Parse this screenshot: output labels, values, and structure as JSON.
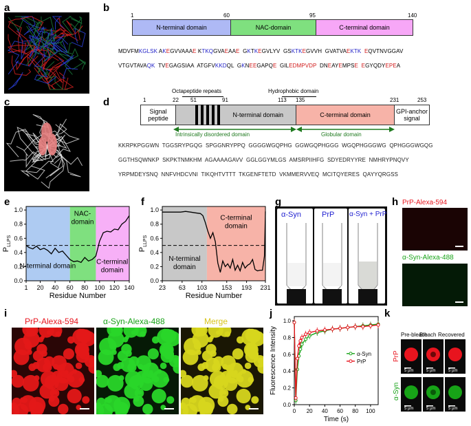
{
  "labels": {
    "a": "a",
    "b": "b",
    "c": "c",
    "d": "d",
    "e": "e",
    "f": "f",
    "g": "g",
    "h": "h",
    "i": "i",
    "j": "j",
    "k": "k"
  },
  "panel_b": {
    "ticks": [
      "1",
      "60",
      "95",
      "140"
    ],
    "domains": [
      "N-terminal domain",
      "NAC-domain",
      "C-terminal domain"
    ],
    "seq_line1": [
      [
        "MDVFM",
        "k"
      ],
      [
        "KGLSK",
        "b"
      ],
      [
        " A",
        "k"
      ],
      [
        "K",
        "b"
      ],
      [
        "E",
        "r"
      ],
      [
        "GVVAA",
        "k"
      ],
      [
        "A",
        "k"
      ],
      [
        "E",
        "r"
      ],
      [
        " K",
        "k"
      ],
      [
        "TKQ",
        "b"
      ],
      [
        "GVA",
        "k"
      ],
      [
        "E",
        "r"
      ],
      [
        "A",
        "k"
      ],
      [
        "A",
        "k"
      ],
      [
        "E",
        "r"
      ],
      [
        "  G",
        "k"
      ],
      [
        "K",
        "b"
      ],
      [
        "T",
        "k"
      ],
      [
        "K",
        "b"
      ],
      [
        "E",
        "r"
      ],
      [
        "GVLYV  GS",
        "k"
      ],
      [
        "KTK",
        "b"
      ],
      [
        "E",
        "r"
      ],
      [
        "GVVH  GVATVA",
        "k"
      ],
      [
        "E",
        "r"
      ],
      [
        "KTK",
        "b"
      ],
      [
        "  ",
        "k"
      ],
      [
        "E",
        "r"
      ],
      [
        "QVTNVGGAV",
        "k"
      ]
    ],
    "seq_line2": [
      [
        "VTGVTAVA",
        "k"
      ],
      [
        "QK",
        "b"
      ],
      [
        "  TV",
        "k"
      ],
      [
        "E",
        "r"
      ],
      [
        "GAGSIAA  ATGFV",
        "k"
      ],
      [
        "KKD",
        "b"
      ],
      [
        "QL  G",
        "k"
      ],
      [
        "K",
        "b"
      ],
      [
        "N",
        "k"
      ],
      [
        "EE",
        "r"
      ],
      [
        "GAP",
        "k"
      ],
      [
        "Q",
        "k"
      ],
      [
        "E",
        "r"
      ],
      [
        "  GIL",
        "k"
      ],
      [
        "EDMPVDP",
        "r"
      ],
      [
        "  DN",
        "k"
      ],
      [
        "E",
        "r"
      ],
      [
        "AY",
        "k"
      ],
      [
        "E",
        "r"
      ],
      [
        "MPS",
        "k"
      ],
      [
        "E",
        "r"
      ],
      [
        "  ",
        "k"
      ],
      [
        "E",
        "r"
      ],
      [
        "GYQDY",
        "k"
      ],
      [
        "EPE",
        "r"
      ],
      [
        "A",
        "k"
      ]
    ]
  },
  "panel_d": {
    "octa_label": "Octapeptide repeats",
    "hydro_label": "Hydrophobic domain",
    "ticks": [
      "1",
      "22",
      "51",
      "91",
      "113",
      "135",
      "231",
      "253"
    ],
    "domains": [
      "Signal peptide",
      "N-terminal domain",
      "C-terminal domain",
      "GPI-anchor signal"
    ],
    "arrow_left": "Intrinsically disordered domain",
    "arrow_right": "Globular domain",
    "seq": [
      "KKRPKPGGWN  TGGSRYPGQG  SPGGNRYPPQ  GGGGWGQPHG  GGWGQPHGGG  WGQPHGGGWG  QPHGGGWGQG",
      "GGTHSQWNKP  SKPKTNMKHM  AGAAAAGAVV  GGLGGYMLGS  AMSRPIIHFG  SDYEDRYYRE  NMHRYPNQVY",
      "YRPMDEYSNQ  NNFVHDCVNI  TIKQHTVTTT  TKGENFTETD  VKMMERVVEQ  MCITQYERES  QAYYQRGSS"
    ]
  },
  "panel_e": {
    "ylabel": "P",
    "ylabel_sub": "LLPS",
    "xlabel": "Residue Number",
    "region_labels": {
      "n": "N-terminal domain",
      "nac": "NAC- domain",
      "c": "C-terminal domain"
    },
    "xticks": [
      "1",
      "20",
      "40",
      "60",
      "80",
      "100",
      "120",
      "140"
    ],
    "yticks": [
      "0.0",
      "0.2",
      "0.4",
      "0.6",
      "0.8",
      "1.0"
    ]
  },
  "panel_f": {
    "ylabel": "P",
    "ylabel_sub": "LLPS",
    "xlabel": "Residue Number",
    "region_labels": {
      "n": "N-terminal domain",
      "c": "C-terminal domain"
    },
    "xticks": [
      "23",
      "63",
      "103",
      "153",
      "193",
      "231"
    ],
    "yticks": [
      "0.0",
      "0.2",
      "0.4",
      "0.6",
      "0.8",
      "1.0"
    ]
  },
  "panel_g": {
    "titles": [
      "α-Syn",
      "PrP",
      "α-Syn + PrP"
    ]
  },
  "panel_h": {
    "top": "PrP-Alexa-594",
    "bottom": "α-Syn-Alexa-488"
  },
  "panel_i": {
    "titles": [
      "PrP-Alexa-594",
      "α-Syn-Alexa-488",
      "Merge"
    ]
  },
  "panel_j": {
    "ylabel": "Fluorescence Intensity",
    "xlabel": "Time (s)",
    "legend": [
      "α-Syn",
      "PrP"
    ],
    "xticks": [
      "0",
      "20",
      "40",
      "60",
      "80",
      "100"
    ],
    "yticks": [
      "0.0",
      "0.2",
      "0.4",
      "0.6",
      "0.8",
      "1.0"
    ]
  },
  "panel_k": {
    "cols": [
      "Pre-bleach",
      "Bleach",
      "Recovered"
    ],
    "rows": [
      "PrP",
      "α-Syn"
    ],
    "scale": "5 µm"
  },
  "colors": {
    "n_domain": "#aeb9f5",
    "nac": "#7fe07f",
    "c_domain": "#f7a7f7",
    "prp_n": "#c8c8c8",
    "prp_c": "#f7b3a8",
    "red": "#e8141e",
    "green": "#17a317",
    "blue": "#1f1fd0"
  },
  "chart_data": [
    {
      "type": "line",
      "title": "",
      "xlabel": "Residue Number",
      "ylabel": "PLLPS",
      "xlim": [
        1,
        140
      ],
      "ylim": [
        0,
        1.05
      ],
      "x": [
        1,
        5,
        10,
        15,
        20,
        25,
        30,
        35,
        40,
        45,
        50,
        55,
        60,
        65,
        70,
        75,
        80,
        85,
        90,
        95,
        100,
        105,
        110,
        115,
        120,
        125,
        130,
        135,
        140
      ],
      "series": [
        {
          "values": [
            0.5,
            0.47,
            0.45,
            0.49,
            0.44,
            0.46,
            0.43,
            0.38,
            0.46,
            0.4,
            0.42,
            0.36,
            0.3,
            0.27,
            0.28,
            0.26,
            0.33,
            0.28,
            0.3,
            0.35,
            0.56,
            0.68,
            0.7,
            0.69,
            0.73,
            0.72,
            0.8,
            0.84,
            0.92
          ]
        }
      ],
      "threshold": 0.5
    },
    {
      "type": "line",
      "title": "",
      "xlabel": "Residue Number",
      "ylabel": "PLLPS",
      "xlim": [
        23,
        231
      ],
      "ylim": [
        0,
        1.05
      ],
      "x": [
        23,
        30,
        40,
        50,
        60,
        70,
        80,
        90,
        100,
        105,
        110,
        115,
        120,
        125,
        130,
        135,
        140,
        145,
        150,
        155,
        160,
        165,
        170,
        175,
        180,
        185,
        190,
        195,
        200,
        205,
        210,
        215,
        220,
        225,
        229,
        231
      ],
      "series": [
        {
          "values": [
            0.97,
            0.97,
            0.97,
            0.97,
            0.97,
            0.98,
            0.97,
            0.96,
            0.95,
            0.92,
            0.82,
            0.7,
            0.6,
            0.68,
            0.55,
            0.25,
            0.12,
            0.28,
            0.2,
            0.24,
            0.18,
            0.3,
            0.15,
            0.22,
            0.14,
            0.26,
            0.18,
            0.22,
            0.24,
            0.3,
            0.16,
            0.14,
            0.15,
            0.15,
            0.35,
            0.98
          ]
        }
      ],
      "threshold": 0.5
    },
    {
      "type": "scatter",
      "title": "",
      "xlabel": "Time (s)",
      "ylabel": "Fluorescence Intensity",
      "xlim": [
        0,
        110
      ],
      "ylim": [
        0,
        1.05
      ],
      "x": [
        0,
        2,
        4,
        6,
        8,
        10,
        15,
        20,
        30,
        40,
        50,
        60,
        70,
        80,
        90,
        100,
        110
      ],
      "series": [
        {
          "name": "α-Syn",
          "values": [
            0.98,
            0.05,
            0.42,
            0.58,
            0.66,
            0.72,
            0.78,
            0.82,
            0.86,
            0.88,
            0.9,
            0.91,
            0.92,
            0.93,
            0.94,
            0.95,
            0.96
          ]
        },
        {
          "name": "PrP",
          "values": [
            0.98,
            0.08,
            0.55,
            0.7,
            0.76,
            0.8,
            0.84,
            0.86,
            0.88,
            0.89,
            0.9,
            0.91,
            0.92,
            0.93,
            0.93,
            0.94,
            0.95
          ]
        }
      ]
    }
  ]
}
